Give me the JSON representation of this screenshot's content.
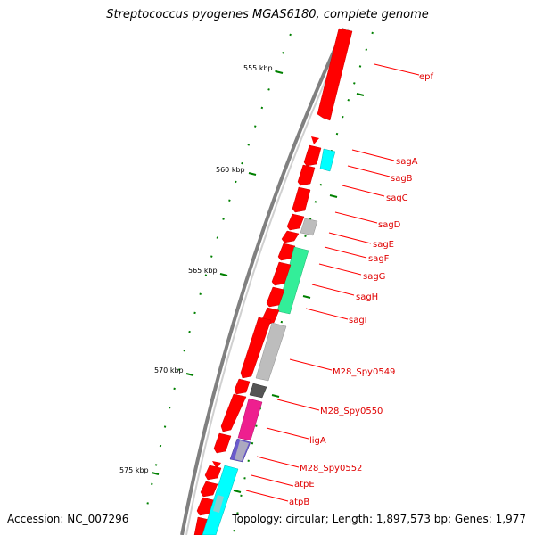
{
  "title": "Streptococcus pyogenes MGAS6180, complete genome",
  "accession": "Accession: NC_007296",
  "summary": "Topology: circular; Length: 1,897,573 bp; Genes: 1,977",
  "colors": {
    "forward": "#ff0000",
    "backbone": "#808080",
    "tick": "#008000",
    "label": "#e00000",
    "cyan": "#00ffff",
    "spring": "#33ee99",
    "gray": "#bdbdbd",
    "dark_gray": "#555555",
    "magenta": "#ee1f8f",
    "slate": "#6a5acd"
  },
  "kbp_labels": [
    "555 kbp",
    "560 kbp",
    "565 kbp",
    "570 kbp",
    "575 kbp"
  ],
  "gene_labels": [
    "epf",
    "sagA",
    "sagB",
    "sagC",
    "sagD",
    "sagE",
    "sagF",
    "sagG",
    "sagH",
    "sagI",
    "M28_Spy0549",
    "M28_Spy0550",
    "ligA",
    "M28_Spy0552",
    "atpE",
    "atpB"
  ]
}
